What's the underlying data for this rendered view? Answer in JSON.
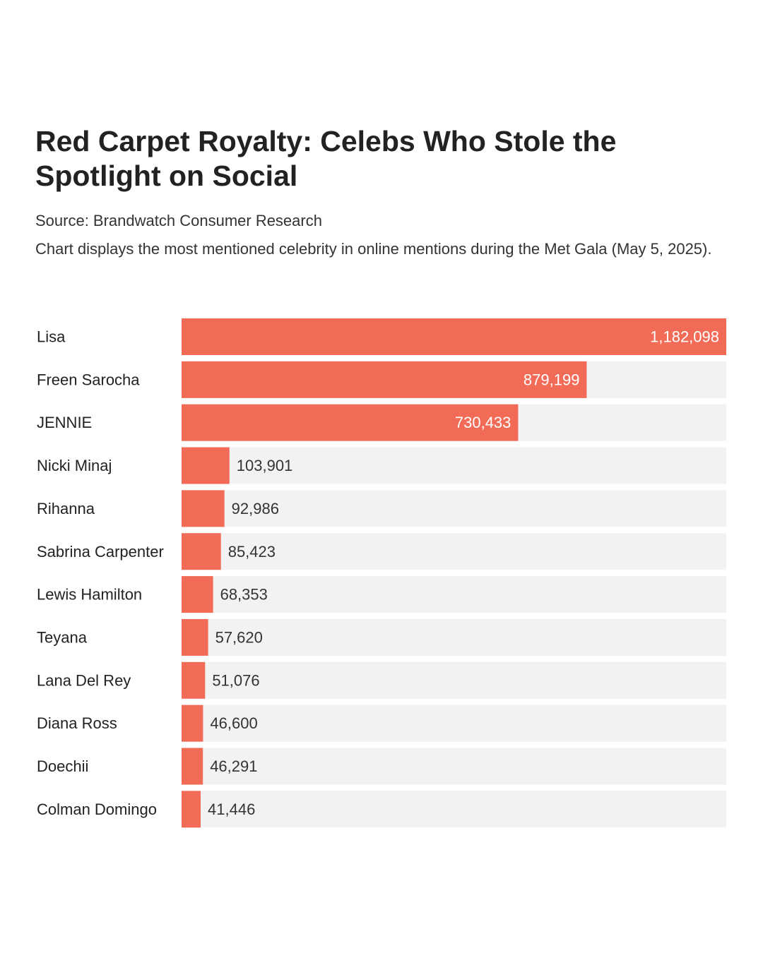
{
  "title": "Red Carpet Royalty: Celebs Who Stole the Spotlight on Social",
  "source": "Source: Brandwatch Consumer Research",
  "subtitle": "Chart displays the most mentioned celebrity in online mentions during the Met Gala (May 5, 2025).",
  "colors": {
    "bar": "#f26b57",
    "track": "#f2f2f2",
    "label_inside": "#ffffff",
    "label_outside": "#333333"
  },
  "chart_data": {
    "type": "bar",
    "orientation": "horizontal",
    "title": "Red Carpet Royalty: Celebs Who Stole the Spotlight on Social",
    "categories": [
      "Lisa",
      "Freen Sarocha",
      "JENNIE",
      "Nicki Minaj",
      "Rihanna",
      "Sabrina Carpenter",
      "Lewis Hamilton",
      "Teyana",
      "Lana Del Rey",
      "Diana Ross",
      "Doechii",
      "Colman Domingo"
    ],
    "values": [
      1182098,
      879199,
      730433,
      103901,
      92986,
      85423,
      68353,
      57620,
      51076,
      46600,
      46291,
      41446
    ],
    "value_labels": [
      "1,182,098",
      "879,199",
      "730,433",
      "103,901",
      "92,986",
      "85,423",
      "68,353",
      "57,620",
      "51,076",
      "46,600",
      "46,291",
      "41,446"
    ],
    "xlim": [
      0,
      1182098
    ],
    "grid": false,
    "legend": "none"
  }
}
